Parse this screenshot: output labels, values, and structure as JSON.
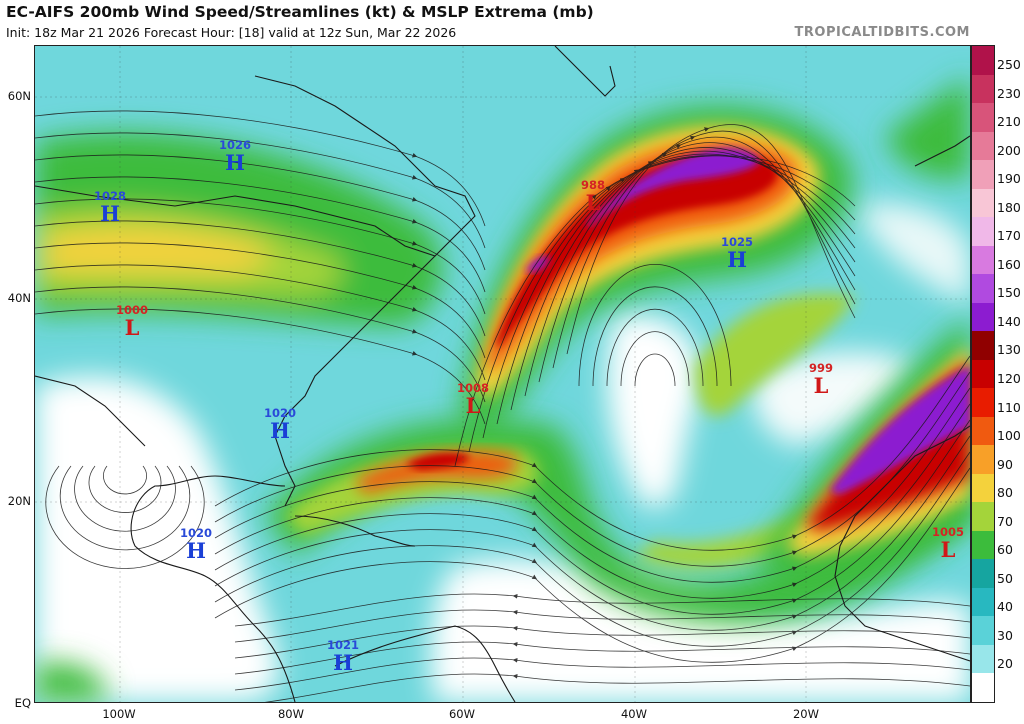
{
  "header": {
    "title": "EC-AIFS 200mb Wind Speed/Streamlines (kt) & MSLP Extrema (mb)",
    "subtitle": "Init: 18z Mar 21 2026   Forecast Hour: [18]   valid at 12z Sun, Mar 22 2026",
    "watermark": "TROPICALTIDBITS.COM"
  },
  "axes": {
    "lat_labels": [
      "60N",
      "40N",
      "20N",
      "EQ"
    ],
    "lon_labels": [
      "100W",
      "80W",
      "60W",
      "40W",
      "20W"
    ]
  },
  "colorbar": {
    "unit": "kt",
    "levels": [
      "250",
      "230",
      "210",
      "200",
      "190",
      "180",
      "170",
      "160",
      "150",
      "140",
      "130",
      "120",
      "110",
      "100",
      "90",
      "80",
      "70",
      "60",
      "50",
      "40",
      "30",
      "20"
    ],
    "colors": [
      "#b0124a",
      "#c8325e",
      "#d8547a",
      "#e67a98",
      "#f0a0b8",
      "#f8c6d6",
      "#f0b8e8",
      "#d87ae0",
      "#b04ae0",
      "#8c1cd0",
      "#900000",
      "#c80000",
      "#e81c00",
      "#f05a10",
      "#f8a028",
      "#f4d23c",
      "#a4d43a",
      "#3cbc3c",
      "#16a5a0",
      "#28b8c0",
      "#5ad2d8",
      "#98e6ea",
      "#ffffff"
    ]
  },
  "pressure_extrema": [
    {
      "kind": "high",
      "symbol": "H",
      "value": "1026"
    },
    {
      "kind": "high",
      "symbol": "H",
      "value": "1028"
    },
    {
      "kind": "low",
      "symbol": "L",
      "value": "1000"
    },
    {
      "kind": "low",
      "symbol": "L",
      "value": "988"
    },
    {
      "kind": "high",
      "symbol": "H",
      "value": "1025"
    },
    {
      "kind": "low",
      "symbol": "L",
      "value": "1008"
    },
    {
      "kind": "high",
      "symbol": "H",
      "value": "1020"
    },
    {
      "kind": "low",
      "symbol": "L",
      "value": "999"
    },
    {
      "kind": "high",
      "symbol": "H",
      "value": "1020"
    },
    {
      "kind": "low",
      "symbol": "L",
      "value": "1005"
    },
    {
      "kind": "high",
      "symbol": "H",
      "value": "1021"
    }
  ],
  "map_colors": {
    "background": "#6fd7dc",
    "coast": "#1a1a1a",
    "streamline": "#1a1a1a",
    "jet_core": "#8c1cd0",
    "jet_red": "#c80000",
    "jet_orange": "#f05a10",
    "jet_yellow": "#f4d23c",
    "jet_green": "#3cbc3c",
    "calm": "#ffffff"
  }
}
